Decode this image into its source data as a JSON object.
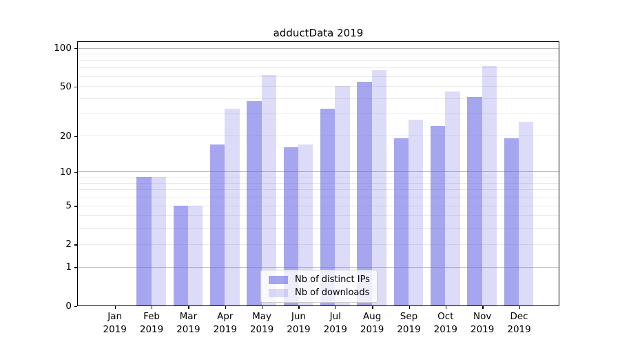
{
  "title": "adductData 2019",
  "chart_data": {
    "type": "bar",
    "title": "adductData 2019",
    "categories": [
      "Jan",
      "Feb",
      "Mar",
      "Apr",
      "May",
      "Jun",
      "Jul",
      "Aug",
      "Sep",
      "Oct",
      "Nov",
      "Dec"
    ],
    "category_year_line": "2019",
    "series": [
      {
        "name": "Nb of distinct IPs",
        "values": [
          0,
          9,
          5,
          17,
          38,
          16,
          33,
          54,
          19,
          24,
          41,
          19
        ],
        "fill": "rgba(102,102,230,0.58)"
      },
      {
        "name": "Nb of downloads",
        "values": [
          0,
          9,
          5,
          33,
          61,
          17,
          50,
          67,
          27,
          45,
          72,
          26
        ],
        "fill": "rgba(102,102,230,0.23)"
      }
    ],
    "xlabel": "",
    "ylabel": "",
    "yscale": "log1p",
    "ylim": [
      0,
      114
    ],
    "yticks": [
      0,
      1,
      2,
      5,
      10,
      20,
      50,
      100
    ],
    "ytick_labels": [
      "0",
      "1",
      "2",
      "5",
      "10",
      "20",
      "50",
      "100"
    ],
    "grid": "on",
    "grid_major_values": [
      1,
      10,
      100
    ],
    "grid_minor_values": [
      2,
      3,
      4,
      5,
      6,
      7,
      8,
      9,
      20,
      30,
      40,
      50,
      60,
      70,
      80,
      90
    ],
    "legend_position": "lower center",
    "colors": {
      "bar_base": "#6666e6",
      "bar_dark_rendered": "#a7a7f0",
      "bar_light_rendered": "#dcdcf8",
      "grid_major": "#b8b8b8",
      "grid_minor": "#e9e9e9",
      "axis": "#000000",
      "legend_border": "#cccccc"
    }
  }
}
